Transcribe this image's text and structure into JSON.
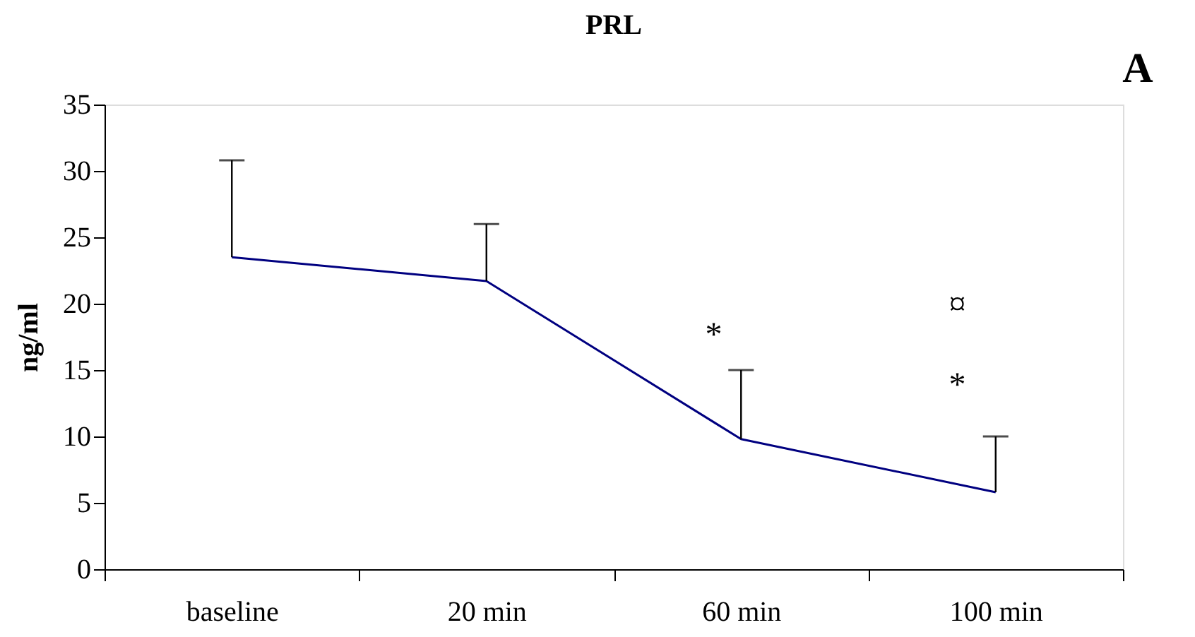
{
  "chart_data": {
    "type": "line",
    "title": "PRL",
    "ylabel": "ng/ml",
    "categories": [
      "baseline",
      "20 min",
      "60 min",
      "100 min"
    ],
    "series": [
      {
        "color": "#000080",
        "values": [
          23.5,
          21.7,
          9.8,
          5.8
        ],
        "errors": [
          [
            23.5,
            30.8
          ],
          [
            21.7,
            26.0
          ],
          [
            9.8,
            15.0
          ],
          [
            5.8,
            10.0
          ]
        ]
      }
    ],
    "ylim": [
      0,
      35
    ],
    "yticks": [
      0,
      5,
      10,
      15,
      20,
      25,
      30,
      35
    ],
    "grid": false,
    "annotations": [
      "*",
      "*",
      "¤",
      "A"
    ]
  }
}
